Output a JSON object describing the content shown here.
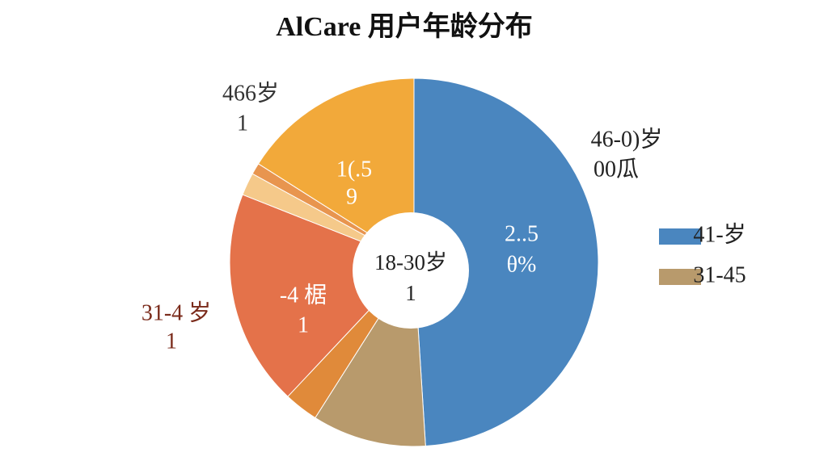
{
  "chart_data": {
    "type": "donut",
    "title": "AlCare 用户年龄分布",
    "values": [
      49,
      10,
      3,
      19,
      2,
      1,
      16
    ],
    "colors": [
      "#4a86bf",
      "#b89a6c",
      "#e08a3a",
      "#e4724a",
      "#f5c98a",
      "#e8954f",
      "#f2a93a"
    ],
    "center_label": [
      "18-30岁",
      "1"
    ],
    "inner_labels": [
      [
        "2..5",
        "θ%"
      ],
      [
        "-4 椐",
        "1"
      ],
      [
        "1(.5",
        "9"
      ]
    ],
    "outer_labels": [
      [
        "46-0)岁",
        "00瓜"
      ],
      [
        "31-4 岁",
        "1"
      ],
      [
        "466岁",
        "1"
      ]
    ],
    "legend": [
      {
        "name": "41-岁",
        "color": "#4a86bf"
      },
      {
        "name": "31-45",
        "color": "#b89a6c"
      }
    ]
  }
}
